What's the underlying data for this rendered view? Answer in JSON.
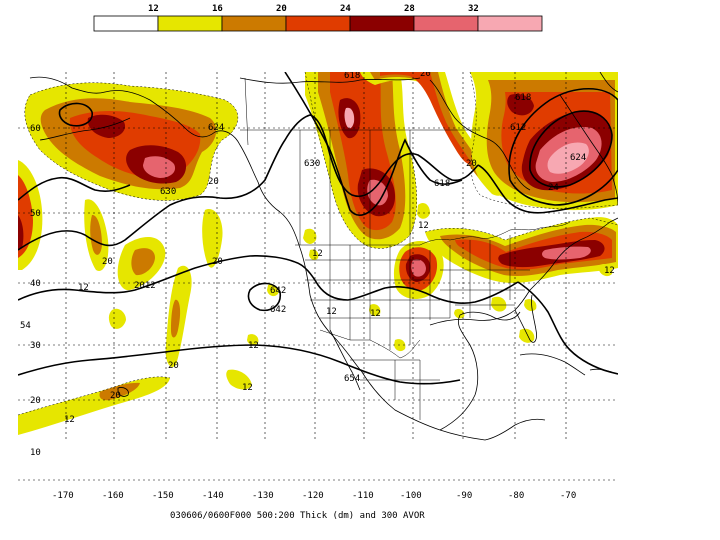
{
  "colorbar": {
    "thresholds": [
      "12",
      "16",
      "20",
      "24",
      "28",
      "32"
    ],
    "swatch_colors": [
      "#ffffff",
      "#e6e600",
      "#cc7a00",
      "#e03c00",
      "#8b0000",
      "#e6646e",
      "#f7a8b2"
    ]
  },
  "map": {
    "lon_labels": [
      "-170",
      "-160",
      "-150",
      "-140",
      "-130",
      "-120",
      "-110",
      "-100",
      "-90",
      "-80",
      "-70"
    ],
    "lat_labels": [
      "60",
      "50",
      "40",
      "30",
      "20",
      "10"
    ],
    "edge_label": "54",
    "contour_labels": [
      "618",
      "624",
      "630",
      "630",
      "618",
      "612",
      "618",
      "624",
      "642",
      "642",
      "654"
    ],
    "avor_labels": [
      "12",
      "12",
      "12",
      "12",
      "12",
      "12",
      "20",
      "20",
      "20",
      "20",
      "20",
      "20",
      "2012",
      "12",
      "12",
      "12",
      "20",
      "24"
    ],
    "colors": {
      "yellow": "#e6e600",
      "orange": "#cc7a00",
      "red": "#e03c00",
      "darkred": "#8b0000",
      "pink": "#e6646e",
      "lightpink": "#f7a8b2"
    }
  },
  "caption": "030606/0600F000 500:200 Thick (dm) and 300 AVOR"
}
